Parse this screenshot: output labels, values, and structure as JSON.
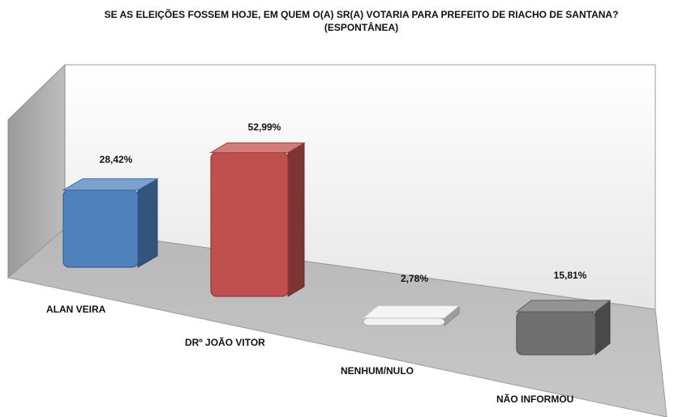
{
  "chart_data": {
    "type": "bar",
    "title_line1": "SE AS ELEIÇÕES FOSSEM HOJE, EM QUEM O(A) SR(A) VOTARIA PARA PREFEITO DE RIACHO DE SANTANA?",
    "title_line2": "(ESPONTÂNEA)",
    "categories": [
      "ALAN VEIRA",
      "DRº JOÃO VITOR",
      "NENHUM/NULO",
      "NÃO INFORMOU"
    ],
    "values": [
      28.42,
      52.99,
      2.78,
      15.81
    ],
    "value_labels": [
      "28,42%",
      "52,99%",
      "2,78%",
      "15,81%"
    ],
    "colors": [
      "#4f81bd",
      "#c0504d",
      "#f2f2f2",
      "#707070"
    ],
    "ylim": [
      0,
      100
    ],
    "grid": false,
    "legend": "none",
    "style": "3d-column"
  }
}
